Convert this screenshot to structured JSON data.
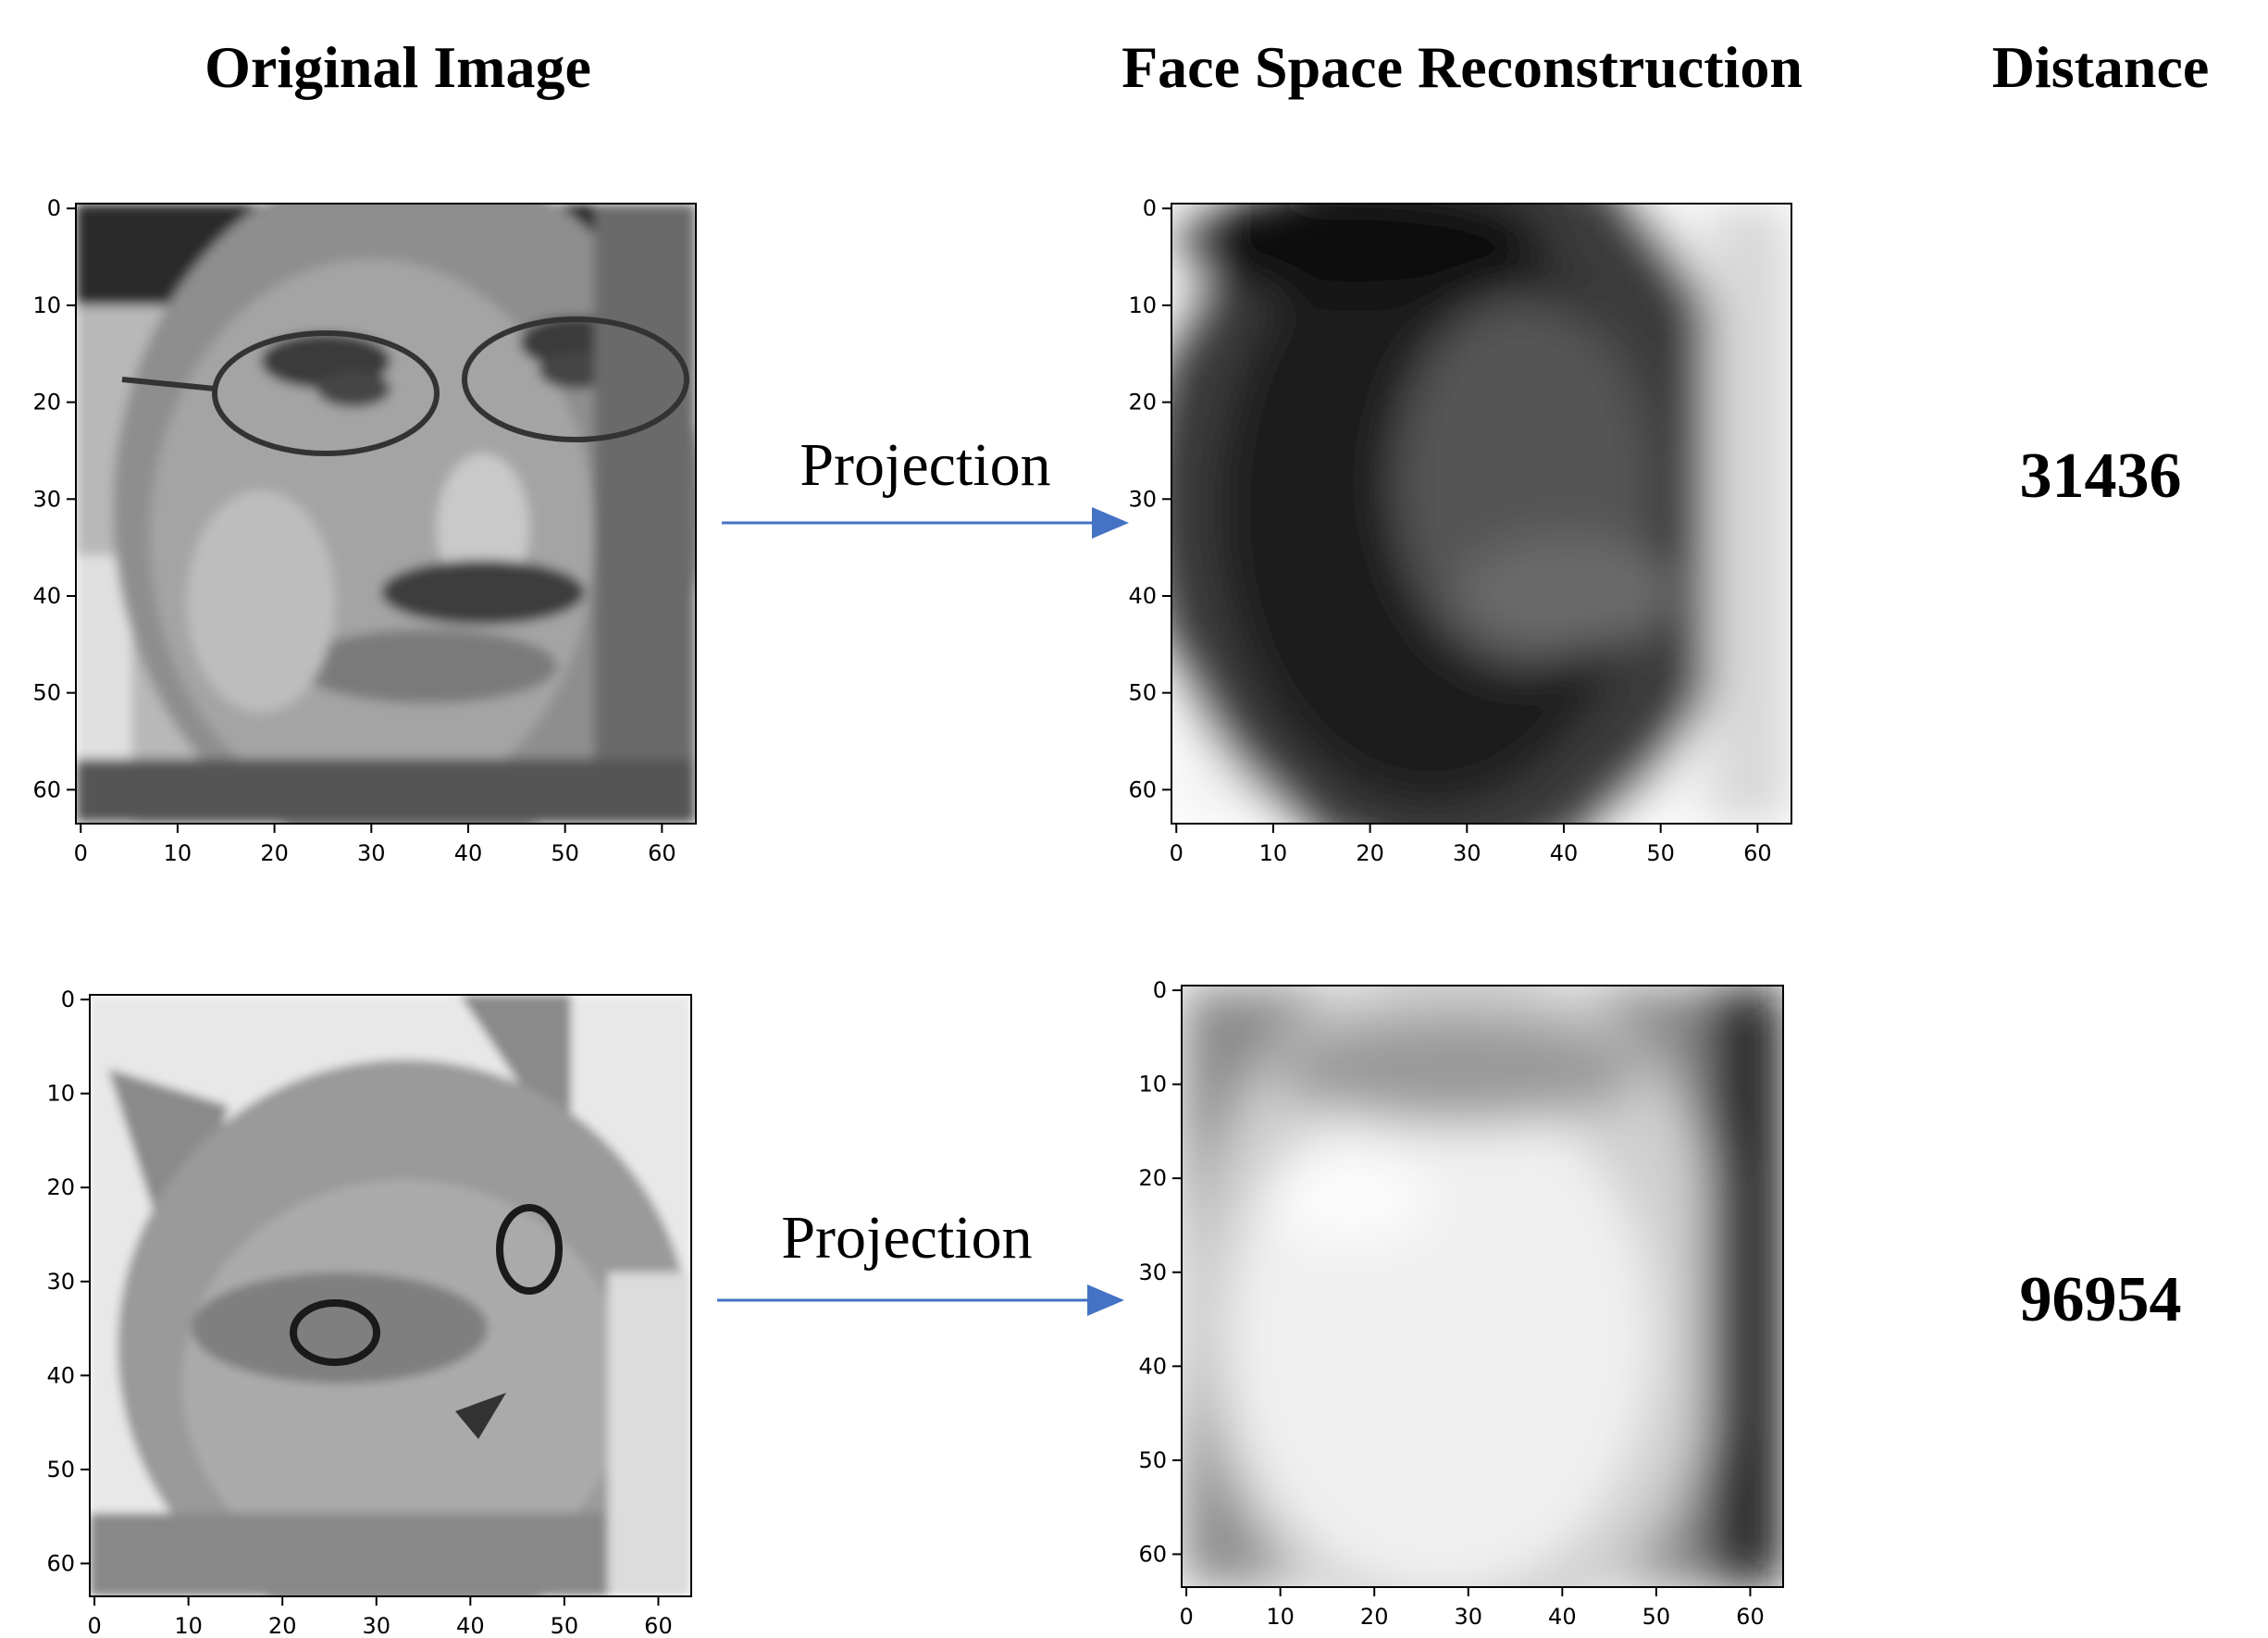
{
  "headers": {
    "original": "Original Image",
    "reconstruction": "Face Space Reconstruction",
    "distance": "Distance"
  },
  "rows": [
    {
      "name": "face",
      "arrow_label": "Projection",
      "distance": "31436"
    },
    {
      "name": "cat",
      "arrow_label": "Projection",
      "distance": "96954"
    }
  ],
  "axis": {
    "ticks": [
      "0",
      "10",
      "20",
      "30",
      "40",
      "50",
      "60"
    ],
    "range": [
      0,
      64
    ]
  },
  "colors": {
    "arrow": "#4472c4"
  }
}
